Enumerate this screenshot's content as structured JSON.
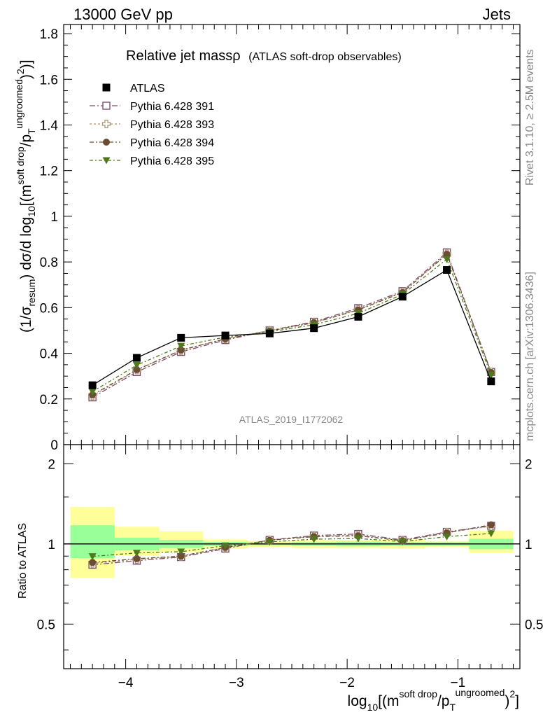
{
  "header": {
    "left": "13000 GeV pp",
    "right": "Jets"
  },
  "side_labels": {
    "rivet": "Rivet 3.1.10, ≥ 2.5M events",
    "mcplots": "mcplots.cern.ch [arXiv:1306.3436]"
  },
  "watermark": "ATLAS_2019_I1772062",
  "chart_data": {
    "type": "scatter",
    "title": "Relative jet massρ",
    "subtitle": "(ATLAS soft-drop observables)",
    "xlabel_parts": {
      "pre": "log",
      "sub10": "10",
      "mid": "[(m",
      "sup1": "soft drop",
      "slash": "/p",
      "sub_t": "T",
      "sup2": "ungroomed",
      "post": ")",
      "sq": "2",
      "close": "]"
    },
    "ylabel_parts": {
      "a": "(1/σ",
      "sub": "resum",
      "b": ") dσ/d log",
      "sub10": "10",
      "c": "[(m",
      "sup1": "soft drop",
      "d": "/p",
      "sub_t": "T",
      "sup2": "ungroomed",
      "e": ")",
      "sq": "2",
      "f": ")]"
    },
    "x_range": [
      -4.56,
      -0.44
    ],
    "y_range": [
      0,
      1.84
    ],
    "x_ticks": [
      -4,
      -3,
      -2,
      -1
    ],
    "x_tick_labels": [
      "−4",
      "−3",
      "−2",
      "−1"
    ],
    "y_ticks": [
      0,
      0.2,
      0.4,
      0.6,
      0.8,
      1,
      1.2,
      1.4,
      1.6,
      1.8
    ],
    "y_tick_labels": [
      "0",
      "0.2",
      "0.4",
      "0.6",
      "0.8",
      "1",
      "1.2",
      "1.4",
      "1.6",
      "1.8"
    ],
    "x": [
      -4.3,
      -3.9,
      -3.5,
      -3.1,
      -2.7,
      -2.3,
      -1.9,
      -1.5,
      -1.1,
      -0.7
    ],
    "bin_edges": [
      -4.5,
      -4.1,
      -3.7,
      -3.3,
      -2.9,
      -2.5,
      -2.1,
      -1.7,
      -1.3,
      -0.9,
      -0.5
    ],
    "series": [
      {
        "name": "ATLAS",
        "marker": "filled-square",
        "color": "#000000",
        "values": [
          0.26,
          0.38,
          0.468,
          0.478,
          0.487,
          0.51,
          0.56,
          0.648,
          0.765,
          0.277
        ]
      },
      {
        "name": "Pythia 6.428 391",
        "marker": "open-square",
        "color": "#7f4f6f",
        "values": [
          0.207,
          0.318,
          0.406,
          0.458,
          0.5,
          0.538,
          0.598,
          0.672,
          0.842,
          0.318
        ]
      },
      {
        "name": "Pythia 6.428 393",
        "marker": "open-cross",
        "color": "#a89870",
        "values": [
          0.213,
          0.327,
          0.412,
          0.464,
          0.5,
          0.535,
          0.592,
          0.668,
          0.836,
          0.318
        ]
      },
      {
        "name": "Pythia 6.428 394",
        "marker": "filled-circle",
        "color": "#6b4c35",
        "values": [
          0.218,
          0.328,
          0.414,
          0.463,
          0.498,
          0.534,
          0.59,
          0.666,
          0.834,
          0.316
        ]
      },
      {
        "name": "Pythia 6.428 395",
        "marker": "filled-triangle-down",
        "color": "#4f7a1c",
        "values": [
          0.232,
          0.348,
          0.432,
          0.471,
          0.494,
          0.525,
          0.575,
          0.658,
          0.812,
          0.305
        ]
      }
    ],
    "ratio": {
      "ylabel": "Ratio to ATLAS",
      "y_range": [
        0.34,
        2.36
      ],
      "y_ticks": [
        0.5,
        1,
        2
      ],
      "y_tick_labels": [
        "0.5",
        "1",
        "2"
      ],
      "band_inner": [
        [
          0.885,
          1.175
        ],
        [
          0.945,
          1.055
        ],
        [
          0.965,
          1.035
        ],
        [
          0.982,
          1.018
        ],
        [
          0.99,
          1.01
        ],
        [
          0.985,
          1.015
        ],
        [
          0.98,
          1.02
        ],
        [
          0.985,
          1.015
        ],
        [
          0.985,
          1.015
        ],
        [
          0.955,
          1.045
        ]
      ],
      "band_outer": [
        [
          0.745,
          1.375
        ],
        [
          0.905,
          1.16
        ],
        [
          0.93,
          1.115
        ],
        [
          0.96,
          1.04
        ],
        [
          0.975,
          1.025
        ],
        [
          0.965,
          1.035
        ],
        [
          0.965,
          1.035
        ],
        [
          0.96,
          1.04
        ],
        [
          0.975,
          1.025
        ],
        [
          0.925,
          1.12
        ]
      ],
      "series_values": [
        [
          0.835,
          0.865,
          0.893,
          0.96,
          1.035,
          1.075,
          1.09,
          1.035,
          1.11,
          1.17
        ],
        [
          0.845,
          0.875,
          0.898,
          0.968,
          1.035,
          1.068,
          1.08,
          1.03,
          1.105,
          1.165
        ],
        [
          0.852,
          0.88,
          0.9,
          0.97,
          1.032,
          1.065,
          1.073,
          1.028,
          1.1,
          1.18
        ],
        [
          0.898,
          0.925,
          0.935,
          0.985,
          1.018,
          1.042,
          1.048,
          1.02,
          1.065,
          1.095
        ]
      ]
    }
  }
}
